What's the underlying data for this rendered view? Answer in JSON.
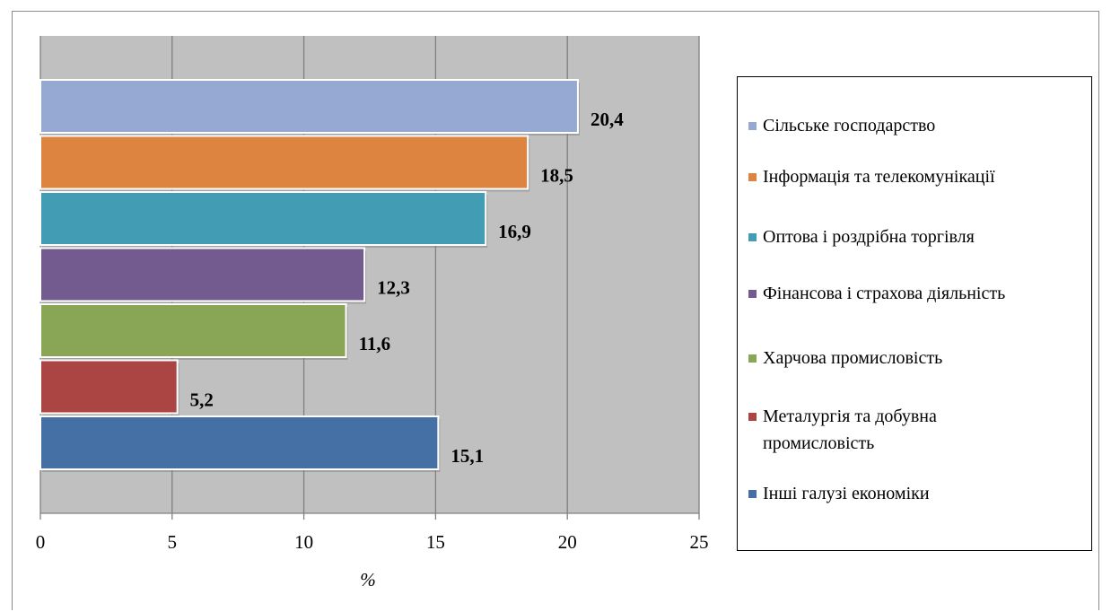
{
  "chart_data": {
    "type": "bar",
    "orientation": "horizontal",
    "categories": [
      "Сільське господарство",
      "Інформація та телекомунікації",
      "Оптова і роздрібна торгівля",
      "Фінансова і страхова діяльність",
      "Харчова промисловість",
      "Металургія та добувна промисловість",
      "Інші галузі економіки"
    ],
    "values": [
      20.4,
      18.5,
      16.9,
      12.3,
      11.6,
      5.2,
      15.1
    ],
    "value_labels": [
      "20,4",
      "18,5",
      "16,9",
      "12,3",
      "11,6",
      "5,2",
      "15,1"
    ],
    "colors": [
      "#95A9D3",
      "#DD8540",
      "#429CB3",
      "#735A8F",
      "#89A656",
      "#AB4543",
      "#4470A5"
    ],
    "xlabel": "%",
    "ylabel": "",
    "xlim": [
      0,
      25
    ],
    "xticks": [
      0,
      5,
      10,
      15,
      20,
      25
    ],
    "grid": true,
    "plot_background": "#C0C0C0",
    "legend_position": "right"
  }
}
